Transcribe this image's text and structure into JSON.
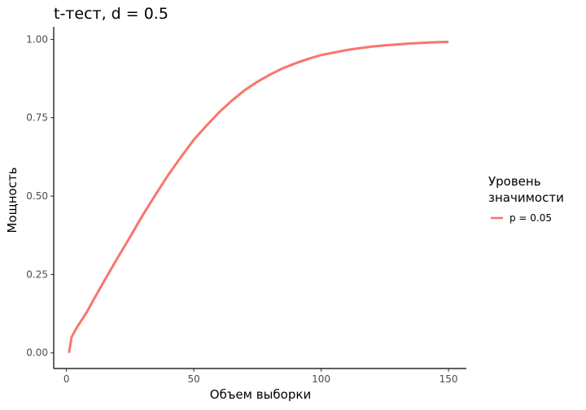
{
  "chart_data": {
    "type": "line",
    "title": "t-тест, d = 0.5",
    "xlabel": "Объем выборки",
    "ylabel": "Мощность",
    "xlim": [
      -5,
      157
    ],
    "ylim": [
      -0.05,
      1.04
    ],
    "x_ticks": [
      0,
      50,
      100,
      150
    ],
    "y_ticks": [
      0.0,
      0.25,
      0.5,
      0.75,
      1.0
    ],
    "x_tick_labels": [
      "0",
      "50",
      "100",
      "150"
    ],
    "y_tick_labels": [
      "0.00",
      "0.25",
      "0.50",
      "0.75",
      "1.00"
    ],
    "grid": false,
    "legend": {
      "title_lines": [
        "Уровень",
        "значимости"
      ],
      "position": "right"
    },
    "series": [
      {
        "name": "p = 0.05",
        "color": "#F8766D",
        "points": [
          [
            1,
            0.0
          ],
          [
            2,
            0.05
          ],
          [
            4,
            0.08
          ],
          [
            6,
            0.105
          ],
          [
            8,
            0.13
          ],
          [
            10,
            0.16
          ],
          [
            15,
            0.232
          ],
          [
            20,
            0.302
          ],
          [
            25,
            0.37
          ],
          [
            30,
            0.44
          ],
          [
            35,
            0.505
          ],
          [
            40,
            0.568
          ],
          [
            45,
            0.625
          ],
          [
            50,
            0.68
          ],
          [
            55,
            0.725
          ],
          [
            60,
            0.768
          ],
          [
            65,
            0.805
          ],
          [
            70,
            0.838
          ],
          [
            75,
            0.865
          ],
          [
            80,
            0.888
          ],
          [
            85,
            0.908
          ],
          [
            90,
            0.924
          ],
          [
            95,
            0.938
          ],
          [
            100,
            0.95
          ],
          [
            105,
            0.958
          ],
          [
            110,
            0.966
          ],
          [
            115,
            0.972
          ],
          [
            120,
            0.977
          ],
          [
            125,
            0.981
          ],
          [
            130,
            0.984
          ],
          [
            135,
            0.987
          ],
          [
            140,
            0.989
          ],
          [
            145,
            0.991
          ],
          [
            150,
            0.992
          ]
        ]
      }
    ]
  }
}
